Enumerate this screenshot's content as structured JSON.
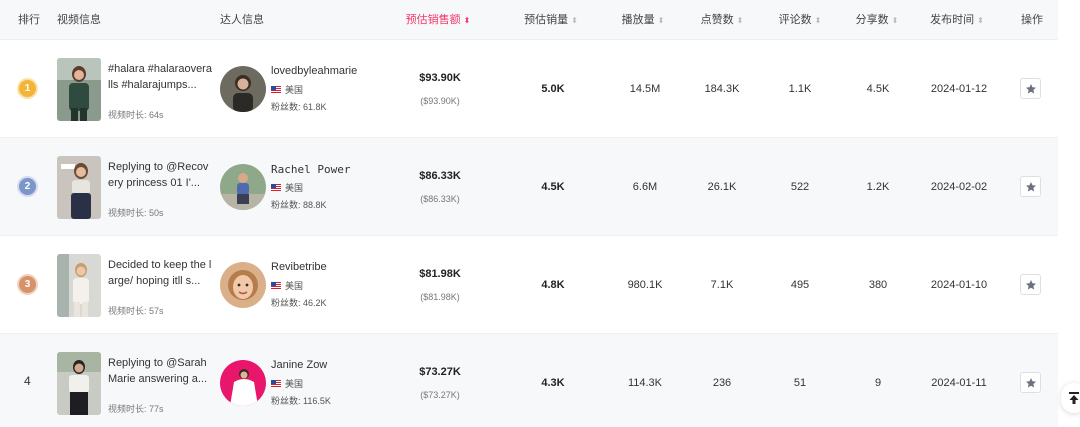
{
  "header": {
    "rank": "排行",
    "video": "视频信息",
    "creator": "达人信息",
    "est_sales_amount": "预估销售额",
    "est_sales_volume": "预估销量",
    "plays": "播放量",
    "likes": "点赞数",
    "comments": "评论数",
    "shares": "分享数",
    "publish_time": "发布时间",
    "actions": "操作"
  },
  "colors": {
    "accent": "#f5366a",
    "header_bg": "#f7f8fa",
    "alt_row_bg": "#f7f8fa"
  },
  "rows": [
    {
      "rank": "1",
      "video_title": "#halara #halaraoveralls #halarajumps...",
      "duration": "视频时长: 64s",
      "creator_name": "lovedbyleahmarie",
      "country": "美国",
      "fans": "粉丝数: 61.8K",
      "sales_amount": "$93.90K",
      "sales_amount_sub": "($93.90K)",
      "sales_volume": "5.0K",
      "plays": "14.5M",
      "likes": "184.3K",
      "comments": "1.1K",
      "shares": "4.5K",
      "publish_date": "2024-01-12"
    },
    {
      "rank": "2",
      "video_title": "Replying to @Recovery princess 01 I'...",
      "duration": "视频时长: 50s",
      "creator_name": "Rachel Power",
      "country": "美国",
      "fans": "粉丝数: 88.8K",
      "sales_amount": "$86.33K",
      "sales_amount_sub": "($86.33K)",
      "sales_volume": "4.5K",
      "plays": "6.6M",
      "likes": "26.1K",
      "comments": "522",
      "shares": "1.2K",
      "publish_date": "2024-02-02"
    },
    {
      "rank": "3",
      "video_title": "Decided to keep the large/ hoping itll s...",
      "duration": "视频时长: 57s",
      "creator_name": "Revibetribe",
      "country": "美国",
      "fans": "粉丝数: 46.2K",
      "sales_amount": "$81.98K",
      "sales_amount_sub": "($81.98K)",
      "sales_volume": "4.8K",
      "plays": "980.1K",
      "likes": "7.1K",
      "comments": "495",
      "shares": "380",
      "publish_date": "2024-01-10"
    },
    {
      "rank": "4",
      "video_title": "Replying to @Sarah Marie answering a...",
      "duration": "视频时长: 77s",
      "creator_name": "Janine Zow",
      "country": "美国",
      "fans": "粉丝数: 116.5K",
      "sales_amount": "$73.27K",
      "sales_amount_sub": "($73.27K)",
      "sales_volume": "4.3K",
      "plays": "114.3K",
      "likes": "236",
      "comments": "51",
      "shares": "9",
      "publish_date": "2024-01-11"
    }
  ],
  "icons": {
    "favorite": "star-icon",
    "back_to_top": "back-to-top-icon",
    "sort": "sort-icon",
    "flag": "us-flag-icon"
  }
}
